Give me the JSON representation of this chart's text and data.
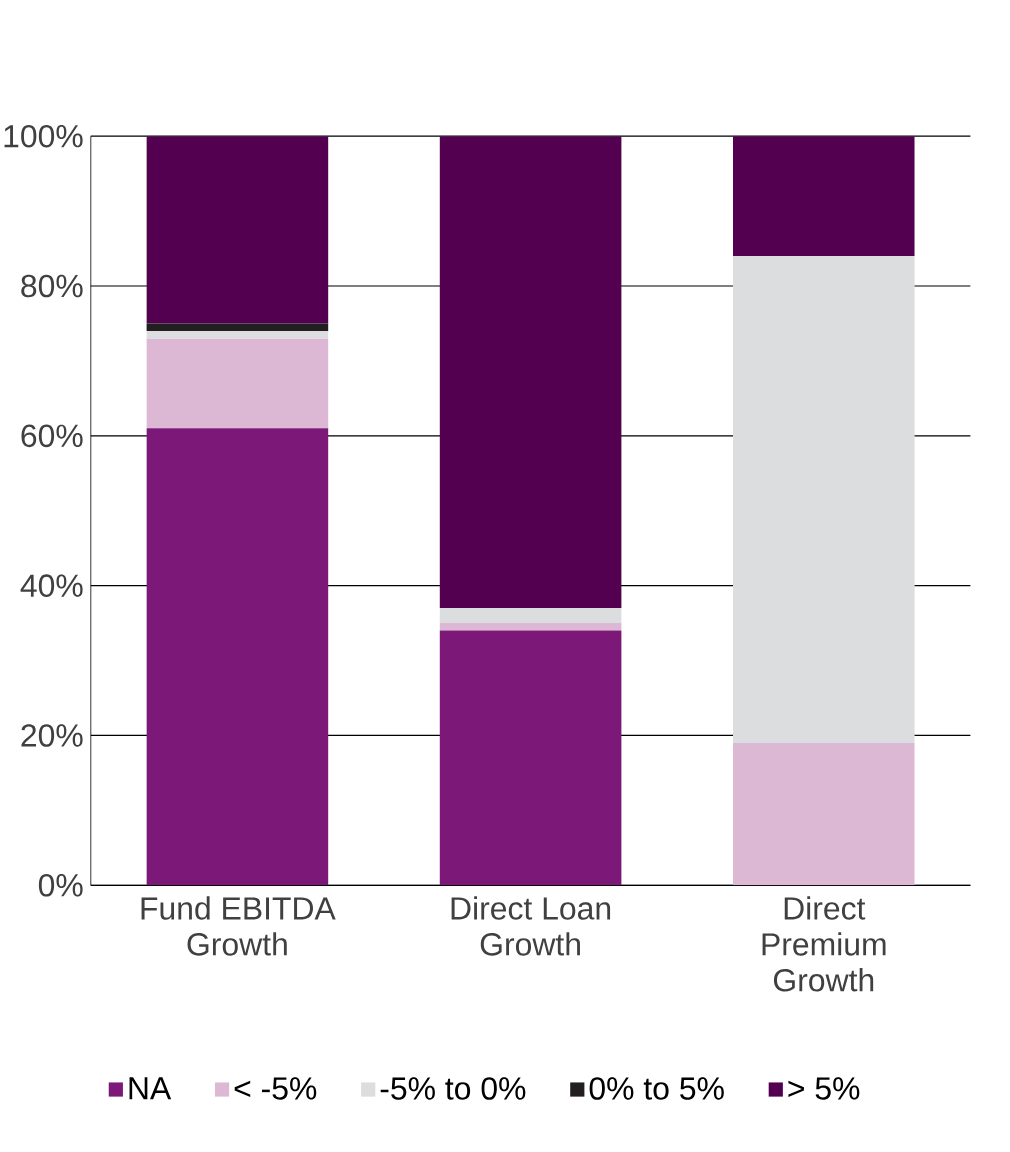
{
  "chart_data": {
    "type": "bar",
    "stacked": true,
    "categories": [
      "Fund EBITDA Growth",
      "Direct Loan Growth",
      "Direct Premium Growth"
    ],
    "series": [
      {
        "name": "NA",
        "color": "#7b1878",
        "values": [
          61,
          34,
          0
        ]
      },
      {
        "name": "< -5%",
        "color": "#ddb8d4",
        "values": [
          12,
          1,
          19
        ]
      },
      {
        "name": "-5% to 0%",
        "color": "#dcdddf",
        "values": [
          1,
          2,
          65
        ]
      },
      {
        "name": "0% to 5%",
        "color": "#231f20",
        "values": [
          1,
          0,
          0
        ]
      },
      {
        "name": "> 5%",
        "color": "#52004f",
        "values": [
          25,
          63,
          16
        ]
      }
    ],
    "ylim": [
      0,
      100
    ],
    "yticks": [
      {
        "value": 0,
        "label": "0%"
      },
      {
        "value": 20,
        "label": "20%"
      },
      {
        "value": 40,
        "label": "40%"
      },
      {
        "value": 60,
        "label": "60%"
      },
      {
        "value": 80,
        "label": "80%"
      },
      {
        "value": 100,
        "label": "100%"
      }
    ],
    "grid": "y",
    "legend": "bottom"
  }
}
